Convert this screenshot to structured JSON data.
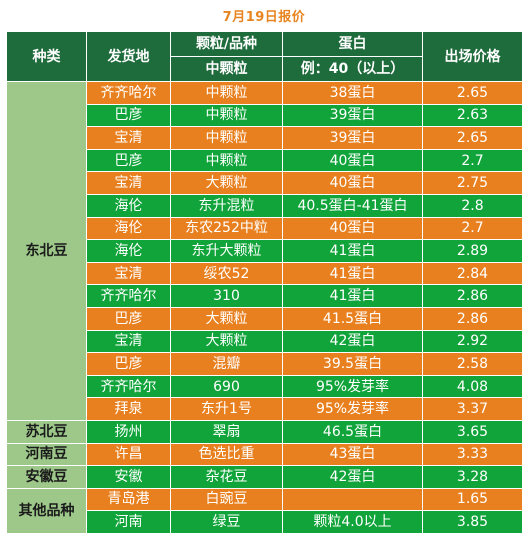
{
  "title": "7月19日报价",
  "header": {
    "col_type": "种类",
    "col_origin": "发货地",
    "col_grade": "颗粒/品种",
    "col_grade_sub": "中颗粒",
    "col_protein": "蛋白",
    "col_protein_sub": "例：40（以上）",
    "col_price": "出场价格"
  },
  "groups": [
    {
      "category": "东北豆",
      "rows": [
        {
          "origin": "齐齐哈尔",
          "grade": "中颗粒",
          "protein": "38蛋白",
          "price": "2.65",
          "color": "orange"
        },
        {
          "origin": "巴彦",
          "grade": "中颗粒",
          "protein": "39蛋白",
          "price": "2.63",
          "color": "green"
        },
        {
          "origin": "宝清",
          "grade": "中颗粒",
          "protein": "39蛋白",
          "price": "2.65",
          "color": "orange"
        },
        {
          "origin": "巴彦",
          "grade": "中颗粒",
          "protein": "40蛋白",
          "price": "2.7",
          "color": "green"
        },
        {
          "origin": "宝清",
          "grade": "大颗粒",
          "protein": "40蛋白",
          "price": "2.75",
          "color": "orange"
        },
        {
          "origin": "海伦",
          "grade": "东升混粒",
          "protein": "40.5蛋白-41蛋白",
          "price": "2.8",
          "color": "green"
        },
        {
          "origin": "海伦",
          "grade": "东农252中粒",
          "protein": "40蛋白",
          "price": "2.7",
          "color": "orange"
        },
        {
          "origin": "海伦",
          "grade": "东升大颗粒",
          "protein": "41蛋白",
          "price": "2.89",
          "color": "green"
        },
        {
          "origin": "宝清",
          "grade": "绥农52",
          "protein": "41蛋白",
          "price": "2.84",
          "color": "orange"
        },
        {
          "origin": "齐齐哈尔",
          "grade": "310",
          "protein": "41蛋白",
          "price": "2.86",
          "color": "green"
        },
        {
          "origin": "巴彦",
          "grade": "大颗粒",
          "protein": "41.5蛋白",
          "price": "2.86",
          "color": "orange"
        },
        {
          "origin": "宝清",
          "grade": "大颗粒",
          "protein": "42蛋白",
          "price": "2.92",
          "color": "green"
        },
        {
          "origin": "巴彦",
          "grade": "混瓣",
          "protein": "39.5蛋白",
          "price": "2.58",
          "color": "orange"
        },
        {
          "origin": "齐齐哈尔",
          "grade": "690",
          "protein": "95%发芽率",
          "price": "4.08",
          "color": "green"
        },
        {
          "origin": "拜泉",
          "grade": "东升1号",
          "protein": "95%发芽率",
          "price": "3.37",
          "color": "orange"
        }
      ]
    },
    {
      "category": "苏北豆",
      "rows": [
        {
          "origin": "扬州",
          "grade": "翠扇",
          "protein": "46.5蛋白",
          "price": "3.65",
          "color": "green"
        }
      ]
    },
    {
      "category": "河南豆",
      "rows": [
        {
          "origin": "许昌",
          "grade": "色选比重",
          "protein": "43蛋白",
          "price": "3.33",
          "color": "orange"
        }
      ]
    },
    {
      "category": "安徽豆",
      "rows": [
        {
          "origin": "安徽",
          "grade": "杂花豆",
          "protein": "42蛋白",
          "price": "3.28",
          "color": "green"
        }
      ]
    },
    {
      "category": "其他品种",
      "rows": [
        {
          "origin": "青岛港",
          "grade": "白豌豆",
          "protein": "",
          "price": "1.65",
          "color": "orange"
        },
        {
          "origin": "河南",
          "grade": "绿豆",
          "protein": "颗粒4.0以上",
          "price": "3.85",
          "color": "green"
        }
      ]
    }
  ],
  "colors": {
    "title": "#E8841F",
    "header_bg": "#1E6B3C",
    "category_bg": "#9DC88A",
    "row_orange": "#E8801F",
    "row_green": "#10A43A"
  }
}
